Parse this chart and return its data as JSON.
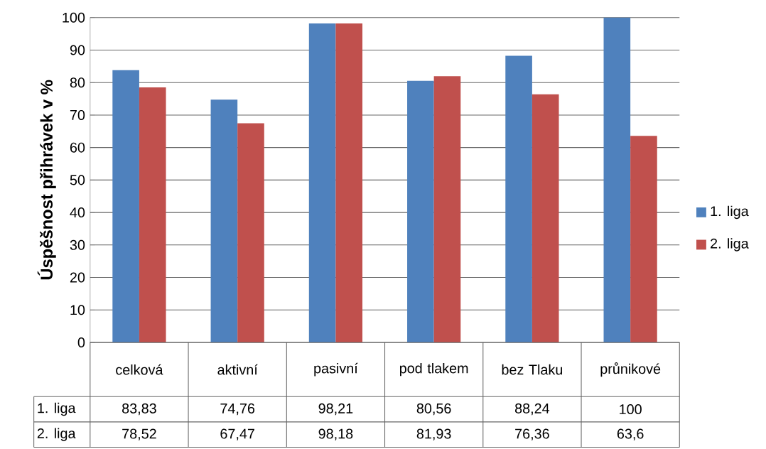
{
  "chart_data": {
    "type": "bar",
    "ylabel": "Úspěšnost přihrávek v %",
    "categories": [
      "celková",
      "aktivní",
      "pasivní",
      "pod tlakem",
      "bez Tlaku",
      "průnikové"
    ],
    "series": [
      {
        "name": "1. liga",
        "color": "#4f81bd",
        "values": [
          83.83,
          74.76,
          98.21,
          80.56,
          88.24,
          100
        ],
        "value_labels": [
          "83,83",
          "74,76",
          "98,21",
          "80,56",
          "88,24",
          "100"
        ]
      },
      {
        "name": "2. liga",
        "color": "#c0504d",
        "values": [
          78.52,
          67.47,
          98.18,
          81.93,
          76.36,
          63.6
        ],
        "value_labels": [
          "78,52",
          "67,47",
          "98,18",
          "81,93",
          "76,36",
          "63,6"
        ]
      }
    ],
    "ylim": [
      0,
      100
    ],
    "yticks": [
      0,
      10,
      20,
      30,
      40,
      50,
      60,
      70,
      80,
      90,
      100
    ],
    "grid": "y",
    "legend": "right"
  }
}
